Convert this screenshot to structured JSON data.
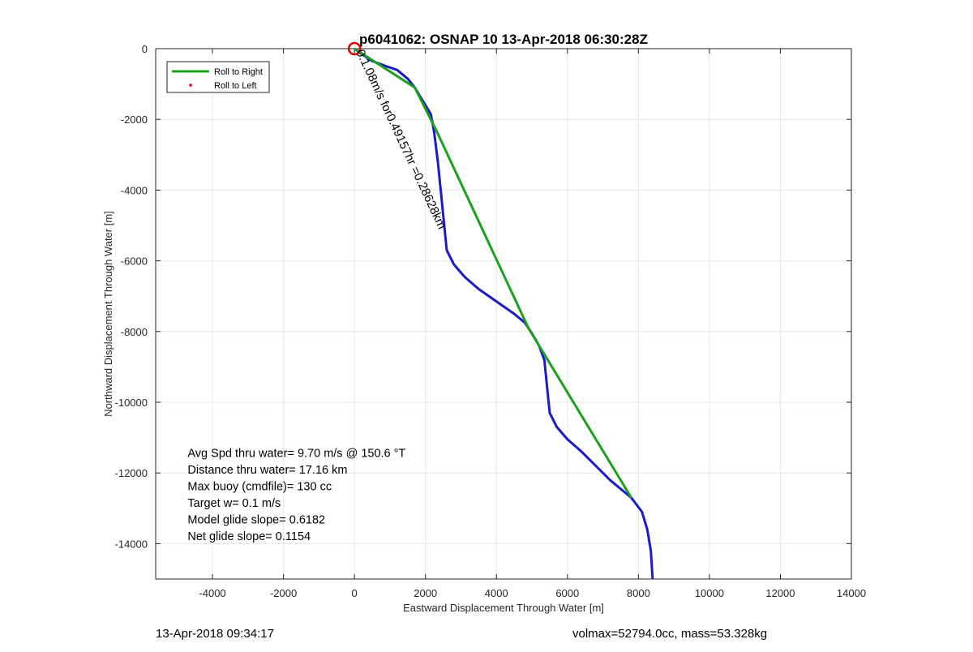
{
  "chart_data": {
    "type": "line",
    "title": "p6041062: OSNAP 10 13-Apr-2018 06:30:28Z",
    "xlabel": "Eastward Displacement Through Water [m]",
    "ylabel": "Northward Displacement Through Water [m]",
    "xlim": [
      -5600,
      14000
    ],
    "ylim": [
      -15000,
      0
    ],
    "grid": true,
    "xticks": [
      -4000,
      -2000,
      0,
      2000,
      4000,
      6000,
      8000,
      10000,
      12000,
      14000
    ],
    "yticks": [
      0,
      -2000,
      -4000,
      -6000,
      -8000,
      -10000,
      -12000,
      -14000
    ],
    "legend": {
      "placement": "top-left",
      "entries": [
        {
          "label": "Roll to Right",
          "color": "#1aa01a",
          "style": "line"
        },
        {
          "label": "Roll to Left",
          "color": "#e00000",
          "style": "dot"
        }
      ]
    },
    "series": [
      {
        "color": "#1a1acd",
        "points": [
          [
            0,
            0
          ],
          [
            200,
            -150
          ],
          [
            500,
            -350
          ],
          [
            900,
            -500
          ],
          [
            1200,
            -600
          ],
          [
            1500,
            -850
          ],
          [
            1700,
            -1100
          ],
          [
            1850,
            -1350
          ],
          [
            2000,
            -1600
          ],
          [
            2150,
            -1850
          ],
          [
            2200,
            -2100
          ],
          [
            2250,
            -2400
          ],
          [
            2300,
            -2800
          ],
          [
            2350,
            -3200
          ],
          [
            2400,
            -3700
          ],
          [
            2450,
            -4200
          ],
          [
            2500,
            -4700
          ],
          [
            2550,
            -5200
          ],
          [
            2600,
            -5700
          ],
          [
            2800,
            -6100
          ],
          [
            3100,
            -6450
          ],
          [
            3500,
            -6800
          ],
          [
            4000,
            -7150
          ],
          [
            4500,
            -7500
          ],
          [
            4800,
            -7750
          ],
          [
            5000,
            -8050
          ],
          [
            5200,
            -8400
          ],
          [
            5350,
            -8800
          ],
          [
            5400,
            -9300
          ],
          [
            5450,
            -9800
          ],
          [
            5500,
            -10300
          ],
          [
            5700,
            -10700
          ],
          [
            6000,
            -11050
          ],
          [
            6400,
            -11400
          ],
          [
            6800,
            -11800
          ],
          [
            7200,
            -12200
          ],
          [
            7800,
            -12700
          ],
          [
            8100,
            -13100
          ],
          [
            8250,
            -13600
          ],
          [
            8350,
            -14200
          ],
          [
            8400,
            -15000
          ]
        ]
      },
      {
        "color": "#1aa01a",
        "points": [
          [
            0,
            0
          ],
          [
            1700,
            -1100
          ],
          [
            2300,
            -2300
          ],
          [
            4900,
            -7900
          ],
          [
            7800,
            -12700
          ]
        ]
      }
    ],
    "marker": {
      "x": 0,
      "y": 0,
      "color": "#dd0000",
      "shape": "circle"
    },
    "annotations": [
      {
        "text": "0.1.08m/s for0.49157hr =0.28628km",
        "x": 0,
        "y": 0,
        "rotation_deg": 65
      }
    ],
    "stats_text": [
      "Avg Spd thru water=  9.70 m/s @ 150.6 °T",
      "Distance thru water= 17.16 km",
      "Max buoy (cmdfile)= 130 cc",
      "Target w= 0.1 m/s",
      "Model glide slope= 0.6182",
      "Net glide slope= 0.1154"
    ],
    "stats_anchor": {
      "x": -4700,
      "y": -11550
    }
  },
  "footer": {
    "timestamp": "13-Apr-2018 09:34:17",
    "volmass": "volmax=52794.0cc, mass=53.328kg"
  }
}
